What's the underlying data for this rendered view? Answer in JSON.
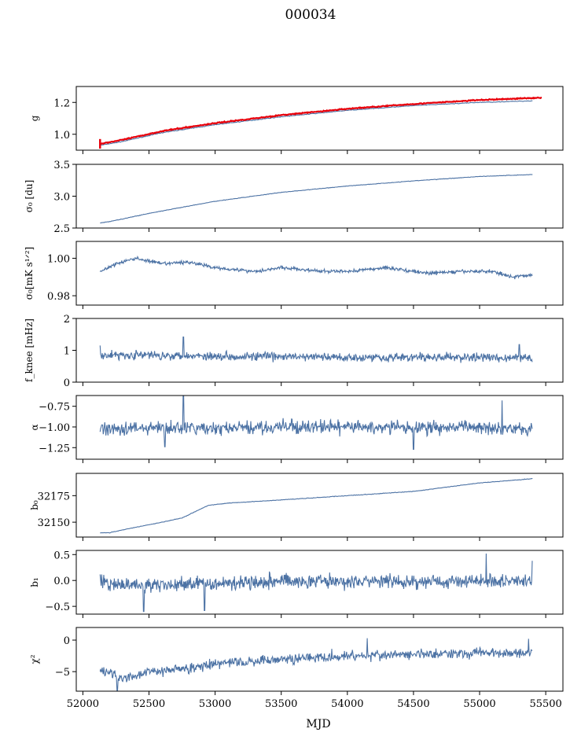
{
  "title": "000034",
  "colors": {
    "series": "#4c72a4",
    "fit": "#e8000b",
    "axis": "#000000"
  },
  "chart_data": {
    "type": "line",
    "shared_x": {
      "label": "MJD",
      "lim": [
        51950,
        55630
      ],
      "ticks": [
        52000,
        52500,
        53000,
        53500,
        54000,
        54500,
        55000,
        55500
      ],
      "tick_labels": [
        "52000",
        "52500",
        "53000",
        "53500",
        "54000",
        "54500",
        "55000",
        "55500"
      ]
    },
    "x_start": 52130,
    "x_end": 55400,
    "panels": [
      {
        "id": "g",
        "ylabel": "g",
        "ylim": [
          0.9,
          1.3
        ],
        "yticks": [
          1.0,
          1.2
        ],
        "ytick_labels": [
          "1.0",
          "1.2"
        ],
        "noise": 0.002,
        "points": [
          [
            52130,
            0.93
          ],
          [
            52300,
            0.955
          ],
          [
            52600,
            1.01
          ],
          [
            53000,
            1.06
          ],
          [
            53500,
            1.11
          ],
          [
            54000,
            1.15
          ],
          [
            54500,
            1.18
          ],
          [
            55000,
            1.2
          ],
          [
            55400,
            1.21
          ]
        ],
        "fit": {
          "name": "fit",
          "noise": 0.003,
          "points": [
            [
              52130,
              0.94
            ],
            [
              52300,
              0.965
            ],
            [
              52600,
              1.02
            ],
            [
              53000,
              1.07
            ],
            [
              53500,
              1.12
            ],
            [
              54000,
              1.16
            ],
            [
              54500,
              1.19
            ],
            [
              55000,
              1.215
            ],
            [
              55470,
              1.23
            ]
          ]
        }
      },
      {
        "id": "sigma0_du",
        "ylabel": "σ₀ [du]",
        "ylim": [
          2.5,
          3.5
        ],
        "yticks": [
          2.5,
          3.0,
          3.5
        ],
        "ytick_labels": [
          "2.5",
          "3.0",
          "3.5"
        ],
        "noise": 0.004,
        "points": [
          [
            52130,
            2.58
          ],
          [
            52200,
            2.6
          ],
          [
            52500,
            2.73
          ],
          [
            53000,
            2.92
          ],
          [
            53500,
            3.06
          ],
          [
            54000,
            3.16
          ],
          [
            54500,
            3.24
          ],
          [
            55000,
            3.31
          ],
          [
            55400,
            3.34
          ]
        ]
      },
      {
        "id": "sigma0_mk",
        "ylabel": "σ₀[mK s¹ᐟ²]",
        "ylim": [
          0.975,
          1.009
        ],
        "yticks": [
          0.98,
          1.0
        ],
        "ytick_labels": [
          "0.98",
          "1.00"
        ],
        "noise": 0.0009,
        "points": [
          [
            52130,
            0.993
          ],
          [
            52250,
            0.997
          ],
          [
            52400,
            1.0
          ],
          [
            52600,
            0.997
          ],
          [
            52800,
            0.998
          ],
          [
            53000,
            0.995
          ],
          [
            53300,
            0.993
          ],
          [
            53500,
            0.995
          ],
          [
            53800,
            0.993
          ],
          [
            54000,
            0.993
          ],
          [
            54300,
            0.995
          ],
          [
            54600,
            0.992
          ],
          [
            54900,
            0.993
          ],
          [
            55100,
            0.993
          ],
          [
            55250,
            0.99
          ],
          [
            55400,
            0.991
          ]
        ]
      },
      {
        "id": "fknee",
        "ylabel": "f_knee [mHz]",
        "ylim": [
          0,
          2
        ],
        "yticks": [
          0,
          1,
          2
        ],
        "ytick_labels": [
          "0",
          "1",
          "2"
        ],
        "noise": 0.13,
        "spikes": [
          [
            52760,
            1.42
          ],
          [
            52130,
            1.15
          ],
          [
            55300,
            1.18
          ]
        ],
        "points": [
          [
            52130,
            0.85
          ],
          [
            52500,
            0.85
          ],
          [
            53000,
            0.82
          ],
          [
            53500,
            0.8
          ],
          [
            54000,
            0.78
          ],
          [
            54500,
            0.78
          ],
          [
            55000,
            0.78
          ],
          [
            55400,
            0.75
          ]
        ]
      },
      {
        "id": "alpha",
        "ylabel": "α",
        "ylim": [
          -1.39,
          -0.62
        ],
        "yticks": [
          -1.25,
          -1.0,
          -0.75
        ],
        "ytick_labels": [
          "−1.25",
          "−1.00",
          "−0.75"
        ],
        "noise": 0.075,
        "spikes": [
          [
            52760,
            -0.62
          ],
          [
            55170,
            -0.68
          ],
          [
            52620,
            -1.24
          ],
          [
            54500,
            -1.27
          ]
        ],
        "points": [
          [
            52130,
            -1.02
          ],
          [
            52500,
            -1.01
          ],
          [
            53000,
            -1.02
          ],
          [
            53500,
            -1.0
          ],
          [
            54000,
            -1.0
          ],
          [
            54500,
            -1.01
          ],
          [
            55000,
            -1.0
          ],
          [
            55400,
            -1.02
          ]
        ]
      },
      {
        "id": "b0",
        "ylabel": "b₀",
        "ylim": [
          32136,
          32196
        ],
        "yticks": [
          32150,
          32175
        ],
        "ytick_labels": [
          "32150",
          "32175"
        ],
        "noise": 0.25,
        "points": [
          [
            52130,
            32140
          ],
          [
            52200,
            32140
          ],
          [
            52350,
            32144
          ],
          [
            52600,
            32150
          ],
          [
            52750,
            32154
          ],
          [
            52850,
            32160
          ],
          [
            52950,
            32166
          ],
          [
            53100,
            32168
          ],
          [
            53500,
            32171
          ],
          [
            54000,
            32175
          ],
          [
            54500,
            32179
          ],
          [
            55000,
            32187
          ],
          [
            55400,
            32191
          ]
        ]
      },
      {
        "id": "b1",
        "ylabel": "b₁",
        "ylim": [
          -0.65,
          0.58
        ],
        "yticks": [
          -0.5,
          0.0,
          0.5
        ],
        "ytick_labels": [
          "−0.5",
          "0.0",
          "0.5"
        ],
        "noise": 0.13,
        "spikes": [
          [
            55050,
            0.52
          ],
          [
            52460,
            -0.6
          ],
          [
            52920,
            -0.58
          ],
          [
            55400,
            0.38
          ]
        ],
        "points": [
          [
            52130,
            -0.05
          ],
          [
            52500,
            -0.1
          ],
          [
            53000,
            -0.05
          ],
          [
            53500,
            0.0
          ],
          [
            54000,
            -0.02
          ],
          [
            54500,
            -0.03
          ],
          [
            55000,
            0.0
          ],
          [
            55400,
            -0.02
          ]
        ]
      },
      {
        "id": "chi2",
        "ylabel": "χ²",
        "ylim": [
          -8.1,
          2.0
        ],
        "yticks": [
          -5,
          0
        ],
        "ytick_labels": [
          "−5",
          "0"
        ],
        "noise": 0.75,
        "spikes": [
          [
            54150,
            0.3
          ],
          [
            55370,
            0.2
          ],
          [
            52260,
            -8.0
          ]
        ],
        "points": [
          [
            52130,
            -4.5
          ],
          [
            52300,
            -6.2
          ],
          [
            52500,
            -5.0
          ],
          [
            52800,
            -4.5
          ],
          [
            53000,
            -3.8
          ],
          [
            53500,
            -3.0
          ],
          [
            54000,
            -2.5
          ],
          [
            54500,
            -2.3
          ],
          [
            55000,
            -2.0
          ],
          [
            55400,
            -2.0
          ]
        ]
      }
    ]
  }
}
